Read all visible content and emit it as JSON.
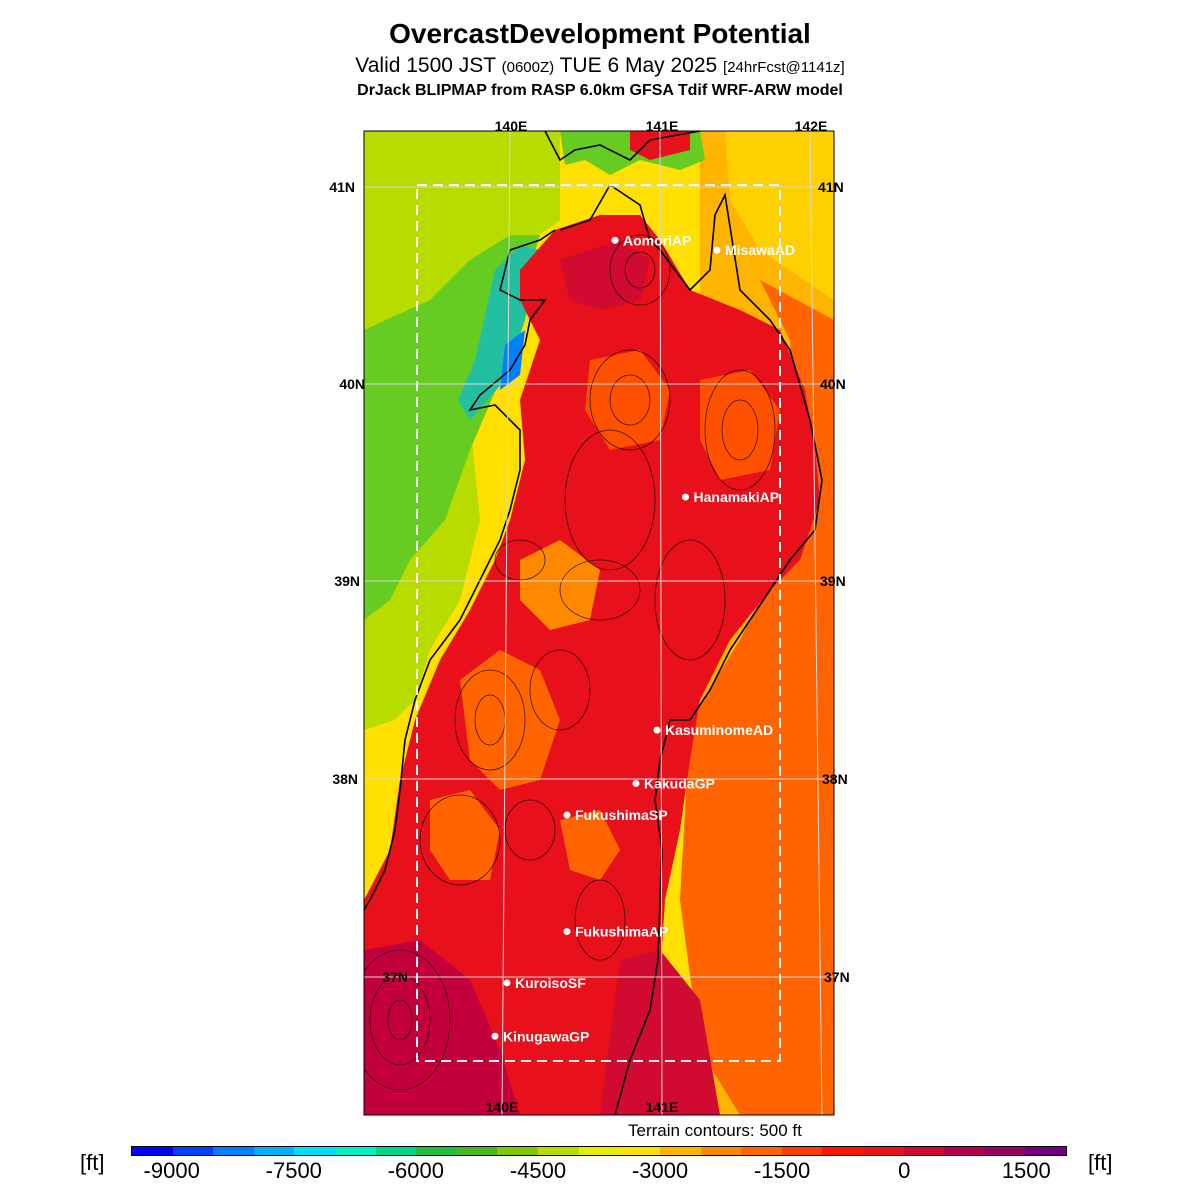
{
  "header": {
    "title": "OvercastDevelopment Potential",
    "valid_main": "Valid 1500 JST",
    "valid_utc": "(0600Z)",
    "valid_date": "TUE 6 May 2025",
    "valid_fcst": "[24hrFcst@1141z]",
    "model": "DrJack BLIPMAP from RASP 6.0km GFSA Tdif WRF-ARW model"
  },
  "map": {
    "lon_labels_top": [
      "140E",
      "141E",
      "142E"
    ],
    "lon_labels_bottom": [
      "140E",
      "141E"
    ],
    "lat_labels_left": [
      "41N",
      "40N",
      "39N",
      "38N",
      "37N"
    ],
    "lat_labels_right": [
      "41N",
      "40N",
      "39N",
      "38N",
      "37N"
    ],
    "stations": [
      {
        "name": "AomoriAP",
        "lon": 140.7,
        "lat": 40.73
      },
      {
        "name": "MisawaAD",
        "lon": 141.38,
        "lat": 40.68
      },
      {
        "name": "HanamakiAP",
        "lon": 141.17,
        "lat": 39.43
      },
      {
        "name": "KasuminomeAD",
        "lon": 140.98,
        "lat": 38.25
      },
      {
        "name": "KakudaGP",
        "lon": 140.84,
        "lat": 37.98
      },
      {
        "name": "FukushimaSP",
        "lon": 140.38,
        "lat": 37.82
      },
      {
        "name": "FukushimaAP",
        "lon": 140.38,
        "lat": 37.23
      },
      {
        "name": "KuroisoSF",
        "lon": 139.98,
        "lat": 36.97
      },
      {
        "name": "KinugawaGP",
        "lon": 139.9,
        "lat": 36.7
      }
    ],
    "colors": {
      "sea_west": "#ffe000",
      "ocean_east": "#ffb400",
      "land": "#e8101a",
      "dark_red": "#cc0030",
      "orange": "#ff6400",
      "green": "#44cc22",
      "station_marker": "#ffffff"
    }
  },
  "terrain_note": "Terrain contours: 500 ft",
  "colorbar": {
    "unit": "[ft]",
    "labels": [
      "-9000",
      "-7500",
      "-6000",
      "-4500",
      "-3000",
      "-1500",
      "0",
      "1500"
    ],
    "colors": [
      "#0000ff",
      "#0040ff",
      "#0080ff",
      "#00b0ff",
      "#00e0ff",
      "#00f0c0",
      "#00d888",
      "#22c040",
      "#44b820",
      "#80c800",
      "#b8dc00",
      "#e8ec00",
      "#ffe000",
      "#ffb400",
      "#ff8800",
      "#ff6400",
      "#ff3c00",
      "#ff1400",
      "#e8101a",
      "#d00a30",
      "#b4004c",
      "#960060",
      "#700080"
    ]
  }
}
